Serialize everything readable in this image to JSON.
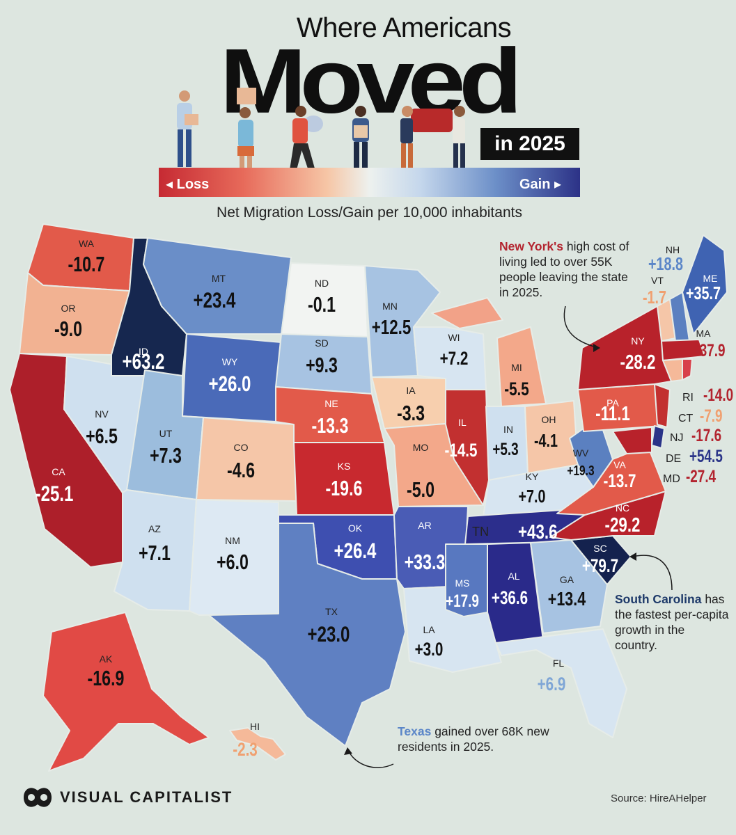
{
  "header": {
    "title_top": "Where Americans",
    "title_main": "Moved",
    "title_sub": "in 2025",
    "legend_loss": "◂ Loss",
    "legend_gain": "Gain ▸",
    "subtitle": "Net Migration Loss/Gain per 10,000 inhabitants"
  },
  "colors": {
    "background": "#dde6e0",
    "loss_dark": "#b8222b",
    "loss_mid": "#e0584c",
    "loss_light": "#f5b999",
    "neutral": "#f2f4f2",
    "gain_light": "#c9dbee",
    "gain_mid": "#5b80c0",
    "gain_dark": "#2a3488",
    "gain_darkest": "#14224e",
    "highlight_red": "#b3242f",
    "highlight_blue": "#5b86c8"
  },
  "states": [
    {
      "abbr": "WA",
      "value": "-10.7"
    },
    {
      "abbr": "OR",
      "value": "-9.0"
    },
    {
      "abbr": "CA",
      "value": "-25.1"
    },
    {
      "abbr": "NV",
      "value": "+6.5"
    },
    {
      "abbr": "ID",
      "value": "+63.2"
    },
    {
      "abbr": "MT",
      "value": "+23.4"
    },
    {
      "abbr": "WY",
      "value": "+26.0"
    },
    {
      "abbr": "UT",
      "value": "+7.3"
    },
    {
      "abbr": "AZ",
      "value": "+7.1"
    },
    {
      "abbr": "CO",
      "value": "-4.6"
    },
    {
      "abbr": "NM",
      "value": "+6.0"
    },
    {
      "abbr": "ND",
      "value": "-0.1"
    },
    {
      "abbr": "SD",
      "value": "+9.3"
    },
    {
      "abbr": "NE",
      "value": "-13.3"
    },
    {
      "abbr": "KS",
      "value": "-19.6"
    },
    {
      "abbr": "OK",
      "value": "+26.4"
    },
    {
      "abbr": "TX",
      "value": "+23.0"
    },
    {
      "abbr": "MN",
      "value": "+12.5"
    },
    {
      "abbr": "IA",
      "value": "-3.3"
    },
    {
      "abbr": "MO",
      "value": "-5.0"
    },
    {
      "abbr": "AR",
      "value": "+33.3"
    },
    {
      "abbr": "LA",
      "value": "+3.0"
    },
    {
      "abbr": "WI",
      "value": "+7.2"
    },
    {
      "abbr": "IL",
      "value": "-14.5"
    },
    {
      "abbr": "MI",
      "value": "-5.5"
    },
    {
      "abbr": "IN",
      "value": "+5.3"
    },
    {
      "abbr": "OH",
      "value": "-4.1"
    },
    {
      "abbr": "KY",
      "value": "+7.0"
    },
    {
      "abbr": "TN",
      "value": "+43.6"
    },
    {
      "abbr": "MS",
      "value": "+17.9"
    },
    {
      "abbr": "AL",
      "value": "+36.6"
    },
    {
      "abbr": "GA",
      "value": "+13.4"
    },
    {
      "abbr": "FL",
      "value": "+6.9"
    },
    {
      "abbr": "SC",
      "value": "+79.7"
    },
    {
      "abbr": "NC",
      "value": "-29.2"
    },
    {
      "abbr": "VA",
      "value": "-13.7"
    },
    {
      "abbr": "WV",
      "value": "+19.3"
    },
    {
      "abbr": "PA",
      "value": "-11.1"
    },
    {
      "abbr": "NY",
      "value": "-28.2"
    },
    {
      "abbr": "VT",
      "value": "-1.7"
    },
    {
      "abbr": "NH",
      "value": "+18.8"
    },
    {
      "abbr": "ME",
      "value": "+35.7"
    },
    {
      "abbr": "MA",
      "value": "-37.9"
    },
    {
      "abbr": "RI",
      "value": "-14.0"
    },
    {
      "abbr": "CT",
      "value": "-7.9"
    },
    {
      "abbr": "NJ",
      "value": "-17.6"
    },
    {
      "abbr": "DE",
      "value": "+54.5"
    },
    {
      "abbr": "MD",
      "value": "-27.4"
    },
    {
      "abbr": "AK",
      "value": "-16.9"
    },
    {
      "abbr": "HI",
      "value": "-2.3"
    }
  ],
  "annotations": {
    "ny": {
      "highlight": "New York's",
      "text": "high cost of living led to over 55K people leaving the state in 2025."
    },
    "sc": {
      "highlight": "South Carolina",
      "text": "has the fastest per-capita growth in the country."
    },
    "tx": {
      "highlight": "Texas",
      "text": "gained over 68K new residents in 2025."
    }
  },
  "footer": {
    "brand": "VISUAL CAPITALIST",
    "source": "Source: HireAHelper"
  }
}
